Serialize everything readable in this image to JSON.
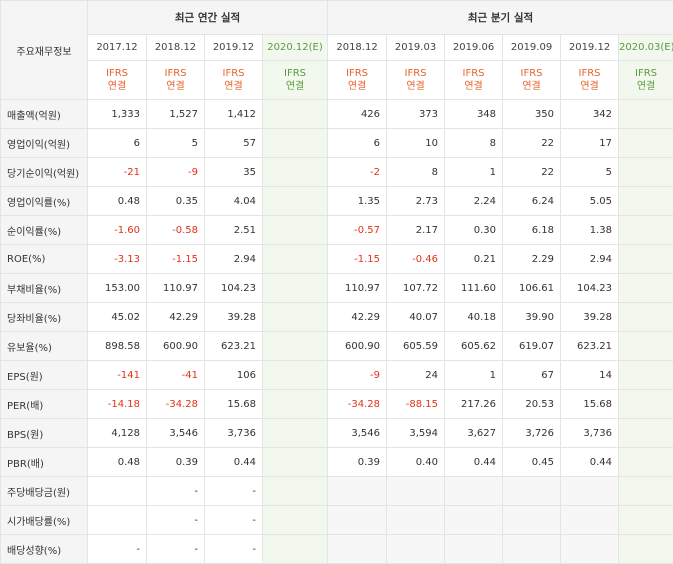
{
  "corner_label": "주요재무정보",
  "groups": {
    "annual": "최근 연간 실적",
    "quarter": "최근 분기 실적"
  },
  "periods": [
    {
      "label": "2017.12",
      "badge_top": "IFRS",
      "badge_bottom": "연결",
      "estimate": false
    },
    {
      "label": "2018.12",
      "badge_top": "IFRS",
      "badge_bottom": "연결",
      "estimate": false
    },
    {
      "label": "2019.12",
      "badge_top": "IFRS",
      "badge_bottom": "연결",
      "estimate": false
    },
    {
      "label": "2020.12(E)",
      "badge_top": "IFRS",
      "badge_bottom": "연결",
      "estimate": true
    },
    {
      "label": "2018.12",
      "badge_top": "IFRS",
      "badge_bottom": "연결",
      "estimate": false
    },
    {
      "label": "2019.03",
      "badge_top": "IFRS",
      "badge_bottom": "연결",
      "estimate": false
    },
    {
      "label": "2019.06",
      "badge_top": "IFRS",
      "badge_bottom": "연결",
      "estimate": false
    },
    {
      "label": "2019.09",
      "badge_top": "IFRS",
      "badge_bottom": "연결",
      "estimate": false
    },
    {
      "label": "2019.12",
      "badge_top": "IFRS",
      "badge_bottom": "연결",
      "estimate": false
    },
    {
      "label": "2020.03(E)",
      "badge_top": "IFRS",
      "badge_bottom": "연결",
      "estimate": true
    }
  ],
  "rows": [
    {
      "label": "매출액(억원)",
      "values": [
        "1,333",
        "1,527",
        "1,412",
        "",
        "426",
        "373",
        "348",
        "350",
        "342",
        ""
      ]
    },
    {
      "label": "영업이익(억원)",
      "values": [
        "6",
        "5",
        "57",
        "",
        "6",
        "10",
        "8",
        "22",
        "17",
        ""
      ]
    },
    {
      "label": "당기순이익(억원)",
      "values": [
        "-21",
        "-9",
        "35",
        "",
        "-2",
        "8",
        "1",
        "22",
        "5",
        ""
      ]
    },
    {
      "label": "영업이익률(%)",
      "values": [
        "0.48",
        "0.35",
        "4.04",
        "",
        "1.35",
        "2.73",
        "2.24",
        "6.24",
        "5.05",
        ""
      ]
    },
    {
      "label": "순이익률(%)",
      "values": [
        "-1.60",
        "-0.58",
        "2.51",
        "",
        "-0.57",
        "2.17",
        "0.30",
        "6.18",
        "1.38",
        ""
      ]
    },
    {
      "label": "ROE(%)",
      "values": [
        "-3.13",
        "-1.15",
        "2.94",
        "",
        "-1.15",
        "-0.46",
        "0.21",
        "2.29",
        "2.94",
        ""
      ]
    },
    {
      "label": "부채비율(%)",
      "values": [
        "153.00",
        "110.97",
        "104.23",
        "",
        "110.97",
        "107.72",
        "111.60",
        "106.61",
        "104.23",
        ""
      ]
    },
    {
      "label": "당좌비율(%)",
      "values": [
        "45.02",
        "42.29",
        "39.28",
        "",
        "42.29",
        "40.07",
        "40.18",
        "39.90",
        "39.28",
        ""
      ]
    },
    {
      "label": "유보율(%)",
      "values": [
        "898.58",
        "600.90",
        "623.21",
        "",
        "600.90",
        "605.59",
        "605.62",
        "619.07",
        "623.21",
        ""
      ]
    },
    {
      "label": "EPS(원)",
      "values": [
        "-141",
        "-41",
        "106",
        "",
        "-9",
        "24",
        "1",
        "67",
        "14",
        ""
      ]
    },
    {
      "label": "PER(배)",
      "values": [
        "-14.18",
        "-34.28",
        "15.68",
        "",
        "-34.28",
        "-88.15",
        "217.26",
        "20.53",
        "15.68",
        ""
      ]
    },
    {
      "label": "BPS(원)",
      "values": [
        "4,128",
        "3,546",
        "3,736",
        "",
        "3,546",
        "3,594",
        "3,627",
        "3,726",
        "3,736",
        ""
      ]
    },
    {
      "label": "PBR(배)",
      "values": [
        "0.48",
        "0.39",
        "0.44",
        "",
        "0.39",
        "0.40",
        "0.44",
        "0.45",
        "0.44",
        ""
      ]
    },
    {
      "label": "주당배당금(원)",
      "values": [
        "",
        "-",
        "-",
        "",
        "",
        "",
        "",
        "",
        "",
        ""
      ]
    },
    {
      "label": "시가배당률(%)",
      "values": [
        "",
        "-",
        "-",
        "",
        "",
        "",
        "",
        "",
        "",
        ""
      ]
    },
    {
      "label": "배당성향(%)",
      "values": [
        "-",
        "-",
        "-",
        "",
        "",
        "",
        "",
        "",
        "",
        ""
      ]
    }
  ],
  "colors": {
    "negative": "#e0321b",
    "ifrs_badge": "#e9622a",
    "estimate_bg": "#f3f8ef",
    "header_bg": "#f5f5f5"
  }
}
